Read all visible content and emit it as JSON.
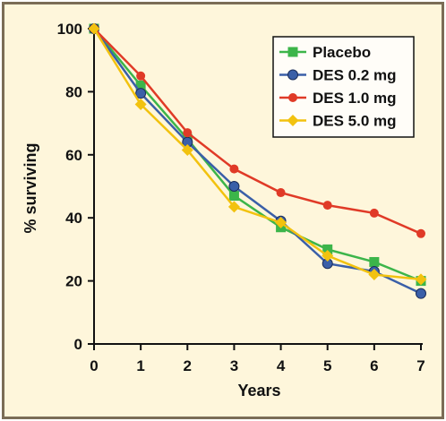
{
  "chart_data": {
    "type": "line",
    "xlabel": "Years",
    "ylabel": "% surviving",
    "xlim": [
      0,
      7
    ],
    "ylim": [
      0,
      100
    ],
    "x": [
      0,
      1,
      2,
      3,
      4,
      5,
      6,
      7
    ],
    "xticks": [
      "0",
      "1",
      "2",
      "3",
      "4",
      "5",
      "6",
      "7"
    ],
    "yticks": [
      "0",
      "20",
      "40",
      "60",
      "80",
      "100"
    ],
    "grid": false,
    "legend_position": "top-right",
    "series": [
      {
        "name": "Placebo",
        "color": "#3cb54a",
        "marker": "square",
        "values": [
          100,
          82,
          65,
          47,
          37,
          30,
          26,
          20
        ]
      },
      {
        "name": "DES 0.2 mg",
        "color": "#3a5fa8",
        "marker": "circle",
        "values": [
          100,
          79.5,
          64,
          50,
          39,
          25.5,
          23,
          16
        ]
      },
      {
        "name": "DES 1.0 mg",
        "color": "#e03a27",
        "marker": "dot",
        "values": [
          100,
          85,
          67,
          55.5,
          48,
          44,
          41.5,
          35
        ]
      },
      {
        "name": "DES 5.0 mg",
        "color": "#f2c20f",
        "marker": "diamond",
        "values": [
          100,
          76,
          61.5,
          43.5,
          38.5,
          28,
          22,
          20.5
        ]
      }
    ]
  }
}
